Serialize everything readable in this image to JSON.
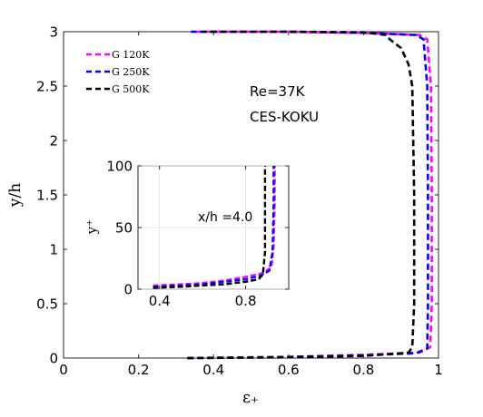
{
  "chart_data": [
    {
      "type": "line",
      "xlabel": "ε₊",
      "ylabel": "y/h",
      "xlim": [
        0,
        1
      ],
      "ylim": [
        0,
        3
      ],
      "xticks": [
        "0",
        "0.2",
        "0.4",
        "0.6",
        "0.8",
        "1"
      ],
      "yticks": [
        "0",
        "0.5",
        "1",
        "1.5",
        "2",
        "2.5",
        "3"
      ],
      "annotations": [
        "Re=37K",
        "CES-KOKU"
      ],
      "legend_position": "top-left",
      "series": [
        {
          "name": "G 120K",
          "color": "#ff00ff",
          "dash": "dashed",
          "x": [
            0.33,
            0.6,
            0.8,
            0.95,
            0.978,
            0.982,
            0.982,
            0.98,
            0.97,
            0.95,
            0.8,
            0.6,
            0.34
          ],
          "y": [
            0.0,
            0.012,
            0.03,
            0.05,
            0.1,
            0.5,
            1.5,
            2.5,
            2.93,
            2.97,
            2.99,
            3.0,
            3.0
          ]
        },
        {
          "name": "G 250K",
          "color": "#0000ff",
          "dash": "dashed",
          "x": [
            0.33,
            0.6,
            0.8,
            0.94,
            0.97,
            0.972,
            0.972,
            0.97,
            0.96,
            0.94,
            0.8,
            0.6,
            0.34
          ],
          "y": [
            0.0,
            0.01,
            0.025,
            0.045,
            0.09,
            0.5,
            1.5,
            2.5,
            2.93,
            2.97,
            2.99,
            3.0,
            3.0
          ]
        },
        {
          "name": "G 500K",
          "color": "#000000",
          "dash": "dashed",
          "x": [
            0.33,
            0.6,
            0.8,
            0.92,
            0.93,
            0.935,
            0.935,
            0.93,
            0.92,
            0.9,
            0.87,
            0.86,
            0.8,
            0.6,
            0.37
          ],
          "y": [
            0.0,
            0.007,
            0.02,
            0.05,
            0.1,
            0.5,
            1.5,
            2.5,
            2.7,
            2.85,
            2.93,
            2.97,
            2.995,
            3.0,
            3.0
          ]
        }
      ]
    },
    {
      "type": "line",
      "xlabel": "",
      "ylabel": "y⁺",
      "xlim": [
        0.3,
        1.0
      ],
      "ylim": [
        0,
        100
      ],
      "xticks": [
        "0.4",
        "0.8"
      ],
      "yticks": [
        "0",
        "50",
        "100"
      ],
      "annotations": [
        "x/h =4.0"
      ],
      "series": [
        {
          "name": "G 120K",
          "color": "#ff00ff",
          "dash": "dashed",
          "x": [
            0.37,
            0.5,
            0.6,
            0.7,
            0.8,
            0.88,
            0.92,
            0.93,
            0.935,
            0.935
          ],
          "y": [
            3,
            4,
            5,
            7,
            10,
            13,
            18,
            35,
            70,
            100
          ]
        },
        {
          "name": "G 250K",
          "color": "#0000ff",
          "dash": "dashed",
          "x": [
            0.37,
            0.5,
            0.6,
            0.7,
            0.8,
            0.87,
            0.91,
            0.925,
            0.93,
            0.93
          ],
          "y": [
            2,
            3,
            4,
            6,
            8,
            11,
            15,
            30,
            70,
            100
          ]
        },
        {
          "name": "G 500K",
          "color": "#000000",
          "dash": "dashed",
          "x": [
            0.37,
            0.5,
            0.6,
            0.7,
            0.8,
            0.86,
            0.88,
            0.89,
            0.89,
            0.89
          ],
          "y": [
            1,
            2,
            3,
            4,
            6,
            8,
            12,
            30,
            70,
            100
          ]
        }
      ]
    }
  ]
}
